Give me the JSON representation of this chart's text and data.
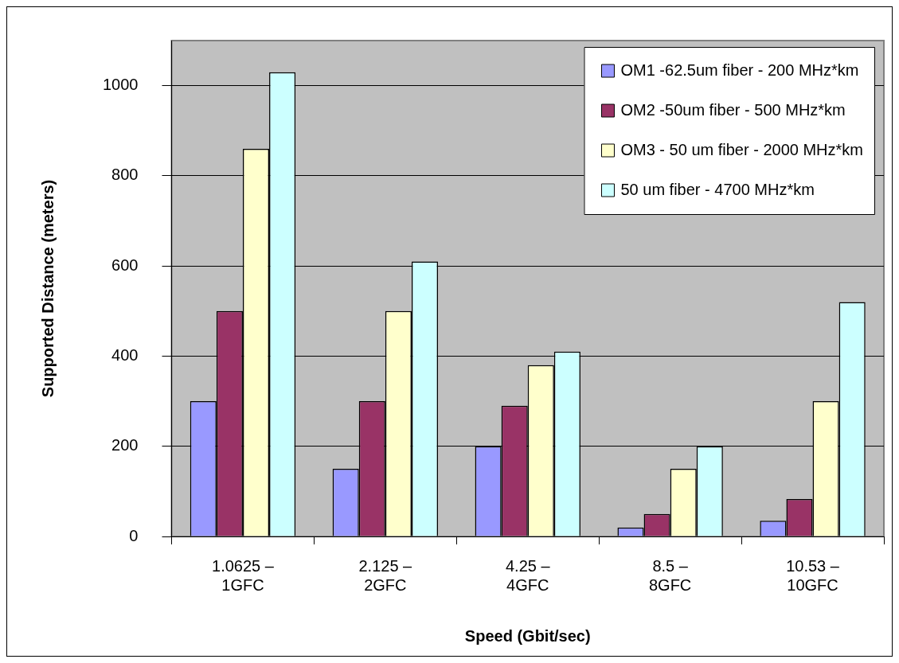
{
  "chart_data": {
    "type": "bar",
    "xlabel": "Speed (Gbit/sec)",
    "ylabel": "Supported Distance (meters)",
    "categories": [
      "1.0625 –\n1GFC",
      "2.125 –\n2GFC",
      "4.25 –\n4GFC",
      "8.5 –\n8GFC",
      "10.53 –\n10GFC"
    ],
    "series": [
      {
        "name": "OM1 -62.5um fiber - 200 MHz*km",
        "color": "#9999ff",
        "values": [
          300,
          150,
          200,
          20,
          35
        ]
      },
      {
        "name": "OM2 -50um fiber - 500 MHz*km",
        "color": "#993366",
        "values": [
          500,
          300,
          290,
          50,
          83
        ]
      },
      {
        "name": "OM3 - 50 um fiber - 2000 MHz*km",
        "color": "#ffffcc",
        "values": [
          860,
          500,
          380,
          150,
          300
        ]
      },
      {
        "name": "50 um fiber - 4700 MHz*km",
        "color": "#ccffff",
        "values": [
          1030,
          610,
          410,
          200,
          520
        ]
      }
    ],
    "ylim": [
      0,
      1100
    ],
    "yticks": [
      0,
      200,
      400,
      600,
      800,
      1000
    ],
    "grid": "y",
    "legend": "top right"
  }
}
